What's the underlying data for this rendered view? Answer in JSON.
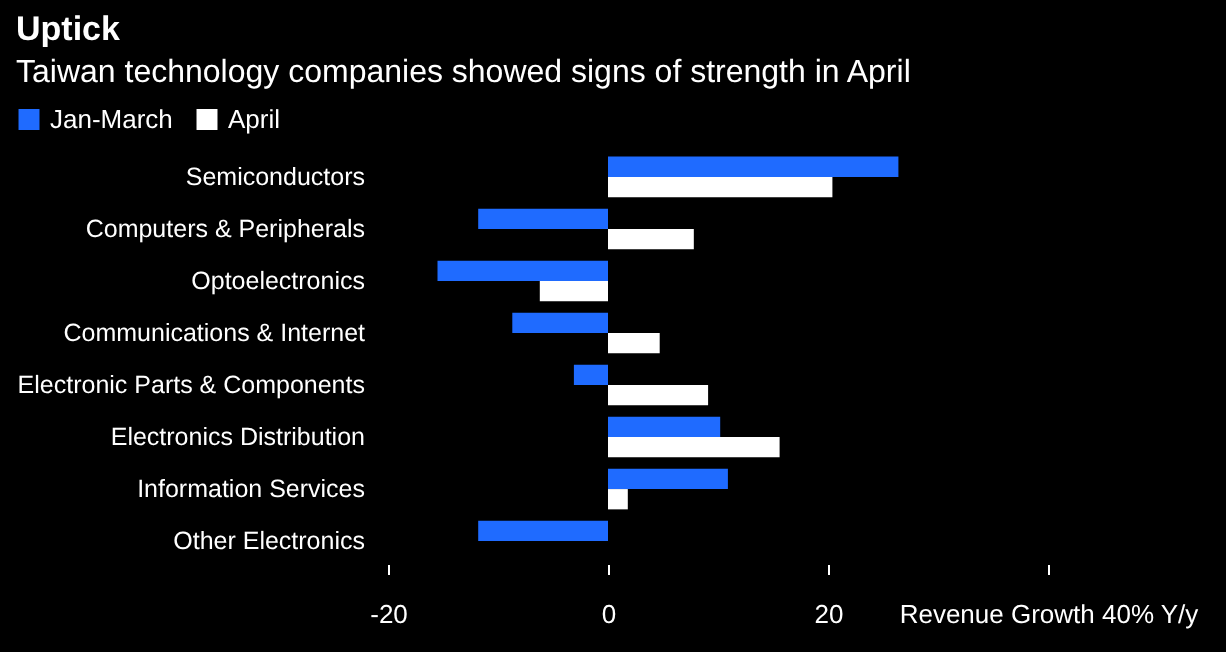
{
  "chart_data": {
    "type": "bar",
    "orientation": "horizontal",
    "title": "Uptick",
    "subtitle": "Taiwan technology companies showed signs of strength in April",
    "categories": [
      "Semiconductors",
      "Computers & Peripherals",
      "Optoelectronics",
      "Communications & Internet",
      "Electronic Parts & Components",
      "Electronics Distribution",
      "Information Services",
      "Other Electronics"
    ],
    "series": [
      {
        "name": "Jan-March",
        "color": "#1f6bff",
        "values": [
          26.4,
          -11.8,
          -15.5,
          -8.7,
          -3.1,
          10.2,
          10.9,
          -11.8
        ]
      },
      {
        "name": "April",
        "color": "#ffffff",
        "values": [
          20.4,
          7.8,
          -6.2,
          4.7,
          9.1,
          15.6,
          1.8,
          0
        ]
      }
    ],
    "xlim": [
      -20,
      40
    ],
    "xticks": [
      -20,
      0,
      20,
      {
        "value": 40,
        "label": "Revenue Growth 40% Y/y"
      }
    ],
    "grid": false,
    "legend": "top left"
  }
}
